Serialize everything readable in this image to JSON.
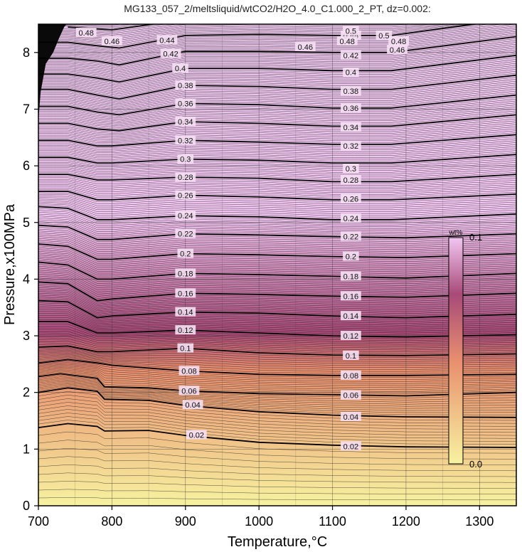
{
  "chart_data": {
    "type": "contour",
    "title": "MG133_057_2/meltsliquid/wtCO2/H2O_4.0_C1.000_2_PT, dz=0.002:",
    "xlabel": "Temperature,°C",
    "ylabel": "Pressure,x100MPa",
    "xlim": [
      700,
      1350
    ],
    "ylim": [
      0,
      8.5
    ],
    "x_ticks": [
      700,
      800,
      900,
      1000,
      1100,
      1200,
      1300
    ],
    "y_ticks": [
      0,
      1,
      2,
      3,
      4,
      5,
      6,
      7,
      8
    ],
    "grid": true,
    "minor_contour_interval": 0.002,
    "colorbar": {
      "unit": "wt%",
      "min_label": "0.0",
      "max_label": "0.1",
      "min": 0.0,
      "max": 0.1,
      "colors": [
        "#f7f2a0",
        "#e9906f",
        "#a84a78",
        "#f2c6f2"
      ]
    },
    "contours": [
      {
        "level": 0.02,
        "label": "0.02",
        "points": [
          [
            700,
            1.38
          ],
          [
            740,
            1.45
          ],
          [
            780,
            1.4
          ],
          [
            790,
            1.32
          ],
          [
            850,
            1.33
          ],
          [
            900,
            1.24
          ],
          [
            1000,
            1.12
          ],
          [
            1100,
            1.07
          ],
          [
            1200,
            1.04
          ],
          [
            1350,
            1.03
          ]
        ]
      },
      {
        "level": 0.04,
        "label": "0.04",
        "points": [
          [
            700,
            2.0
          ],
          [
            740,
            2.08
          ],
          [
            780,
            2.02
          ],
          [
            790,
            1.88
          ],
          [
            850,
            1.86
          ],
          [
            900,
            1.77
          ],
          [
            1000,
            1.66
          ],
          [
            1100,
            1.6
          ],
          [
            1200,
            1.57
          ],
          [
            1350,
            1.56
          ]
        ]
      },
      {
        "level": 0.06,
        "label": "0.06",
        "points": [
          [
            700,
            2.28
          ],
          [
            730,
            2.33
          ],
          [
            780,
            2.25
          ],
          [
            790,
            2.1
          ],
          [
            850,
            2.08
          ],
          [
            900,
            2.03
          ],
          [
            1000,
            1.98
          ],
          [
            1100,
            1.96
          ],
          [
            1200,
            1.94
          ],
          [
            1350,
            2.0
          ]
        ]
      },
      {
        "level": 0.08,
        "label": "0.08",
        "points": [
          [
            700,
            2.52
          ],
          [
            740,
            2.58
          ],
          [
            780,
            2.52
          ],
          [
            800,
            2.48
          ],
          [
            900,
            2.38
          ],
          [
            1000,
            2.32
          ],
          [
            1100,
            2.3
          ],
          [
            1200,
            2.3
          ],
          [
            1350,
            2.32
          ]
        ]
      },
      {
        "level": 0.1,
        "label": "0.1",
        "points": [
          [
            700,
            2.8
          ],
          [
            740,
            2.82
          ],
          [
            780,
            2.72
          ],
          [
            800,
            2.72
          ],
          [
            900,
            2.78
          ],
          [
            1000,
            2.7
          ],
          [
            1100,
            2.66
          ],
          [
            1200,
            2.65
          ],
          [
            1350,
            2.68
          ]
        ]
      },
      {
        "level": 0.12,
        "label": "0.12",
        "points": [
          [
            700,
            3.25
          ],
          [
            740,
            3.25
          ],
          [
            780,
            3.05
          ],
          [
            800,
            3.05
          ],
          [
            900,
            3.1
          ],
          [
            1000,
            3.05
          ],
          [
            1100,
            3.0
          ],
          [
            1200,
            2.98
          ],
          [
            1350,
            3.02
          ]
        ]
      },
      {
        "level": 0.14,
        "label": "0.14",
        "points": [
          [
            700,
            3.62
          ],
          [
            740,
            3.6
          ],
          [
            780,
            3.32
          ],
          [
            800,
            3.35
          ],
          [
            900,
            3.42
          ],
          [
            1000,
            3.4
          ],
          [
            1100,
            3.35
          ],
          [
            1200,
            3.32
          ],
          [
            1350,
            3.38
          ]
        ]
      },
      {
        "level": 0.16,
        "label": "0.16",
        "points": [
          [
            700,
            3.95
          ],
          [
            740,
            3.92
          ],
          [
            780,
            3.62
          ],
          [
            800,
            3.65
          ],
          [
            900,
            3.75
          ],
          [
            1000,
            3.73
          ],
          [
            1100,
            3.7
          ],
          [
            1200,
            3.68
          ],
          [
            1350,
            3.75
          ]
        ]
      },
      {
        "level": 0.18,
        "label": "0.18",
        "points": [
          [
            700,
            4.3
          ],
          [
            740,
            4.25
          ],
          [
            780,
            4.0
          ],
          [
            800,
            4.0
          ],
          [
            900,
            4.1
          ],
          [
            1000,
            4.08
          ],
          [
            1100,
            4.05
          ],
          [
            1200,
            4.02
          ],
          [
            1350,
            4.1
          ]
        ]
      },
      {
        "level": 0.2,
        "label": "0.2",
        "points": [
          [
            700,
            4.62
          ],
          [
            740,
            4.58
          ],
          [
            780,
            4.35
          ],
          [
            800,
            4.35
          ],
          [
            900,
            4.45
          ],
          [
            1000,
            4.43
          ],
          [
            1100,
            4.4
          ],
          [
            1200,
            4.38
          ],
          [
            1350,
            4.45
          ]
        ]
      },
      {
        "level": 0.22,
        "label": "0.22",
        "points": [
          [
            700,
            4.95
          ],
          [
            740,
            4.92
          ],
          [
            780,
            4.7
          ],
          [
            800,
            4.7
          ],
          [
            900,
            4.8
          ],
          [
            1000,
            4.78
          ],
          [
            1100,
            4.75
          ],
          [
            1200,
            4.73
          ],
          [
            1350,
            4.8
          ]
        ]
      },
      {
        "level": 0.24,
        "label": "0.24",
        "points": [
          [
            700,
            5.28
          ],
          [
            740,
            5.25
          ],
          [
            780,
            5.05
          ],
          [
            800,
            5.05
          ],
          [
            900,
            5.12
          ],
          [
            1000,
            5.1
          ],
          [
            1100,
            5.05
          ],
          [
            1180,
            5.05
          ],
          [
            1350,
            5.15
          ]
        ]
      },
      {
        "level": 0.26,
        "label": "0.26",
        "points": [
          [
            700,
            5.55
          ],
          [
            740,
            5.55
          ],
          [
            780,
            5.4
          ],
          [
            800,
            5.4
          ],
          [
            900,
            5.48
          ],
          [
            1000,
            5.45
          ],
          [
            1100,
            5.4
          ],
          [
            1180,
            5.4
          ],
          [
            1350,
            5.5
          ]
        ]
      },
      {
        "level": 0.28,
        "label": "0.28",
        "points": [
          [
            700,
            5.85
          ],
          [
            740,
            5.85
          ],
          [
            780,
            5.75
          ],
          [
            800,
            5.75
          ],
          [
            900,
            5.8
          ],
          [
            1000,
            5.78
          ],
          [
            1100,
            5.72
          ],
          [
            1180,
            5.72
          ],
          [
            1350,
            5.85
          ]
        ]
      },
      {
        "level": 0.3,
        "label": "0.3",
        "points": [
          [
            700,
            6.15
          ],
          [
            740,
            6.15
          ],
          [
            780,
            6.05
          ],
          [
            800,
            6.05
          ],
          [
            900,
            6.12
          ],
          [
            1000,
            6.1
          ],
          [
            1100,
            6.05
          ],
          [
            1180,
            6.05
          ],
          [
            1350,
            6.2
          ]
        ]
      },
      {
        "level": 0.32,
        "label": "0.32",
        "points": [
          [
            700,
            6.45
          ],
          [
            740,
            6.45
          ],
          [
            780,
            6.35
          ],
          [
            800,
            6.35
          ],
          [
            900,
            6.45
          ],
          [
            1000,
            6.42
          ],
          [
            1100,
            6.38
          ],
          [
            1180,
            6.38
          ],
          [
            1350,
            6.55
          ]
        ]
      },
      {
        "level": 0.34,
        "label": "0.34",
        "points": [
          [
            700,
            6.75
          ],
          [
            740,
            6.75
          ],
          [
            780,
            6.65
          ],
          [
            810,
            6.62
          ],
          [
            900,
            6.78
          ],
          [
            1000,
            6.75
          ],
          [
            1100,
            6.7
          ],
          [
            1180,
            6.7
          ],
          [
            1350,
            6.9
          ]
        ]
      },
      {
        "level": 0.36,
        "label": "0.36",
        "points": [
          [
            700,
            7.05
          ],
          [
            740,
            7.05
          ],
          [
            780,
            6.95
          ],
          [
            810,
            6.9
          ],
          [
            900,
            7.1
          ],
          [
            1000,
            7.08
          ],
          [
            1100,
            7.02
          ],
          [
            1180,
            7.02
          ],
          [
            1350,
            7.25
          ]
        ]
      },
      {
        "level": 0.38,
        "label": "0.38",
        "points": [
          [
            700,
            7.35
          ],
          [
            740,
            7.35
          ],
          [
            780,
            7.25
          ],
          [
            810,
            7.18
          ],
          [
            900,
            7.42
          ],
          [
            1000,
            7.4
          ],
          [
            1100,
            7.35
          ],
          [
            1180,
            7.35
          ],
          [
            1350,
            7.6
          ]
        ]
      },
      {
        "level": 0.4,
        "label": "0.4",
        "points": [
          [
            700,
            7.62
          ],
          [
            740,
            7.62
          ],
          [
            780,
            7.55
          ],
          [
            810,
            7.48
          ],
          [
            900,
            7.72
          ],
          [
            1000,
            7.72
          ],
          [
            1100,
            7.68
          ],
          [
            1180,
            7.68
          ],
          [
            1350,
            7.95
          ]
        ]
      },
      {
        "level": 0.42,
        "label": "0.42",
        "points": [
          [
            700,
            7.9
          ],
          [
            740,
            7.9
          ],
          [
            780,
            7.85
          ],
          [
            810,
            7.78
          ],
          [
            900,
            8.02
          ],
          [
            1000,
            8.02
          ],
          [
            1100,
            8.0
          ],
          [
            1180,
            8.0
          ],
          [
            1350,
            8.28
          ]
        ]
      },
      {
        "level": 0.44,
        "label": "0.44",
        "points": [
          [
            700,
            8.18
          ],
          [
            740,
            8.18
          ],
          [
            780,
            8.12
          ],
          [
            810,
            8.08
          ],
          [
            900,
            8.3
          ],
          [
            1000,
            8.32
          ],
          [
            1100,
            8.3
          ],
          [
            1180,
            8.3
          ],
          [
            1350,
            8.6
          ]
        ]
      },
      {
        "level": 0.46,
        "label": "0.46",
        "points": [
          [
            740,
            8.45
          ],
          [
            800,
            8.4
          ],
          [
            900,
            8.58
          ],
          [
            1000,
            8.62
          ],
          [
            1100,
            8.6
          ],
          [
            1180,
            8.6
          ]
        ]
      },
      {
        "level": 0.48,
        "label": "0.48",
        "points": [
          [
            760,
            8.62
          ],
          [
            800,
            8.66
          ],
          [
            900,
            8.86
          ],
          [
            1000,
            8.92
          ],
          [
            1100,
            8.9
          ]
        ]
      }
    ],
    "contour_labels": [
      {
        "text": "0.02",
        "x": 915,
        "y": 1.25
      },
      {
        "text": "0.02",
        "x": 1125,
        "y": 1.05
      },
      {
        "text": "0.04",
        "x": 910,
        "y": 1.78
      },
      {
        "text": "0.04",
        "x": 1125,
        "y": 1.57
      },
      {
        "text": "0.06",
        "x": 905,
        "y": 2.03
      },
      {
        "text": "0.06",
        "x": 1125,
        "y": 1.95
      },
      {
        "text": "0.08",
        "x": 905,
        "y": 2.38
      },
      {
        "text": "0.08",
        "x": 1125,
        "y": 2.3
      },
      {
        "text": "0.1",
        "x": 900,
        "y": 2.78
      },
      {
        "text": "0.1",
        "x": 1125,
        "y": 2.65
      },
      {
        "text": "0.12",
        "x": 900,
        "y": 3.1
      },
      {
        "text": "0.12",
        "x": 1125,
        "y": 3.0
      },
      {
        "text": "0.14",
        "x": 900,
        "y": 3.42
      },
      {
        "text": "0.14",
        "x": 1125,
        "y": 3.35
      },
      {
        "text": "0.16",
        "x": 900,
        "y": 3.75
      },
      {
        "text": "0.16",
        "x": 1125,
        "y": 3.7
      },
      {
        "text": "0.18",
        "x": 900,
        "y": 4.1
      },
      {
        "text": "0.18",
        "x": 1125,
        "y": 4.05
      },
      {
        "text": "0.2",
        "x": 900,
        "y": 4.45
      },
      {
        "text": "0.2",
        "x": 1125,
        "y": 4.4
      },
      {
        "text": "0.22",
        "x": 900,
        "y": 4.8
      },
      {
        "text": "0.22",
        "x": 1125,
        "y": 4.75
      },
      {
        "text": "0.24",
        "x": 900,
        "y": 5.12
      },
      {
        "text": "0.24",
        "x": 1125,
        "y": 5.07
      },
      {
        "text": "0.26",
        "x": 900,
        "y": 5.48
      },
      {
        "text": "0.26",
        "x": 1125,
        "y": 5.42
      },
      {
        "text": "0.28",
        "x": 900,
        "y": 5.8
      },
      {
        "text": "0.28",
        "x": 1125,
        "y": 5.75
      },
      {
        "text": "0.3",
        "x": 900,
        "y": 6.12
      },
      {
        "text": "0.3",
        "x": 1125,
        "y": 5.95
      },
      {
        "text": "0.32",
        "x": 900,
        "y": 6.45
      },
      {
        "text": "0.32",
        "x": 1125,
        "y": 6.35
      },
      {
        "text": "0.34",
        "x": 900,
        "y": 6.78
      },
      {
        "text": "0.34",
        "x": 1125,
        "y": 6.68
      },
      {
        "text": "0.36",
        "x": 900,
        "y": 7.1
      },
      {
        "text": "0.36",
        "x": 1125,
        "y": 7.02
      },
      {
        "text": "0.38",
        "x": 900,
        "y": 7.42
      },
      {
        "text": "0.38",
        "x": 1125,
        "y": 7.32
      },
      {
        "text": "0.4",
        "x": 893,
        "y": 7.72
      },
      {
        "text": "0.4",
        "x": 1125,
        "y": 7.65
      },
      {
        "text": "0.42",
        "x": 880,
        "y": 7.98
      },
      {
        "text": "0.42",
        "x": 1125,
        "y": 7.95
      },
      {
        "text": "0.44",
        "x": 875,
        "y": 8.22
      },
      {
        "text": "0.44",
        "x": 1125,
        "y": 8.3
      },
      {
        "text": "0.46",
        "x": 800,
        "y": 8.2
      },
      {
        "text": "0.46",
        "x": 1063,
        "y": 8.1
      },
      {
        "text": "0.46",
        "x": 1188,
        "y": 8.05
      },
      {
        "text": "0.48",
        "x": 765,
        "y": 8.35
      },
      {
        "text": "0.48",
        "x": 1120,
        "y": 8.2
      },
      {
        "text": "0.48",
        "x": 1190,
        "y": 8.2
      },
      {
        "text": "0.5",
        "x": 1125,
        "y": 8.38
      },
      {
        "text": "0.5",
        "x": 1170,
        "y": 8.3
      }
    ]
  }
}
